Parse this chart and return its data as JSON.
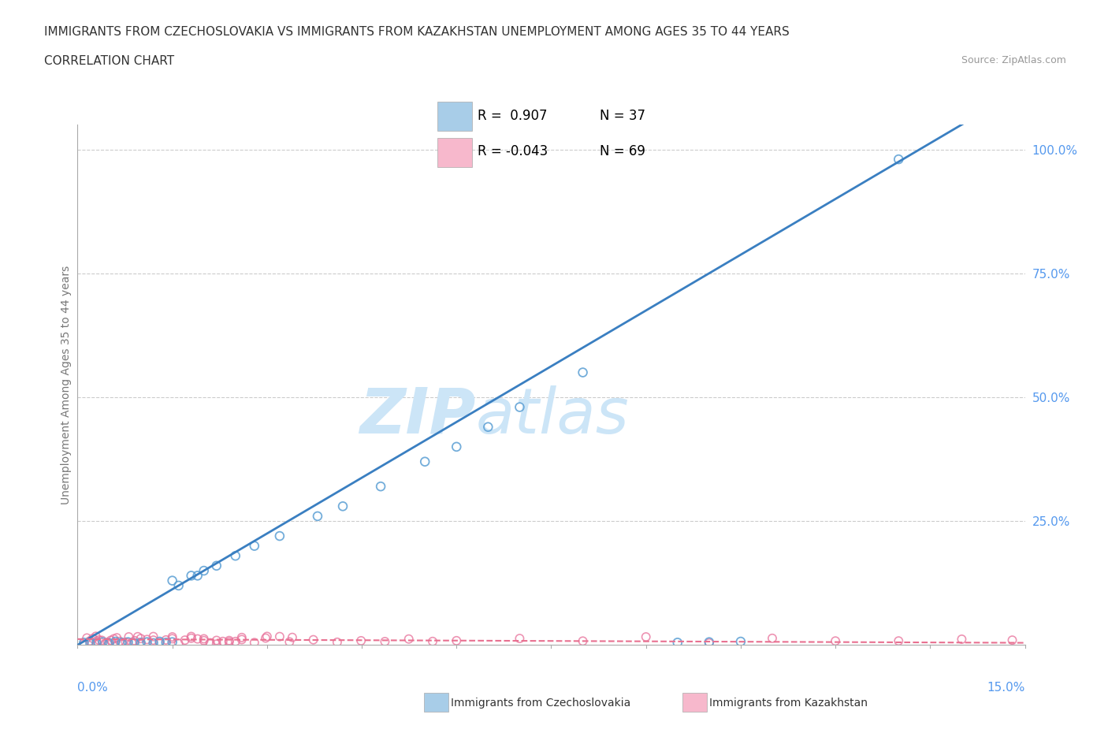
{
  "title_line1": "IMMIGRANTS FROM CZECHOSLOVAKIA VS IMMIGRANTS FROM KAZAKHSTAN UNEMPLOYMENT AMONG AGES 35 TO 44 YEARS",
  "title_line2": "CORRELATION CHART",
  "source": "Source: ZipAtlas.com",
  "ylabel": "Unemployment Among Ages 35 to 44 years",
  "ytick_labels": [
    "100.0%",
    "75.0%",
    "50.0%",
    "25.0%"
  ],
  "ytick_values": [
    1.0,
    0.75,
    0.5,
    0.25
  ],
  "xmin": 0.0,
  "xmax": 0.15,
  "ymin": 0.0,
  "ymax": 1.05,
  "color_czech": "#a8cde8",
  "color_czech_edge": "#5b9fd4",
  "color_czech_line": "#3a7fc1",
  "color_kazakh": "#f7b8cc",
  "color_kazakh_edge": "#e8709a",
  "color_kazakh_line": "#e87090",
  "grid_color": "#cccccc",
  "tick_label_color": "#5599ee",
  "title_color": "#333333",
  "label_color": "#777777",
  "watermark_zip_color": "#cce5f7",
  "watermark_atlas_color": "#cce5f7"
}
